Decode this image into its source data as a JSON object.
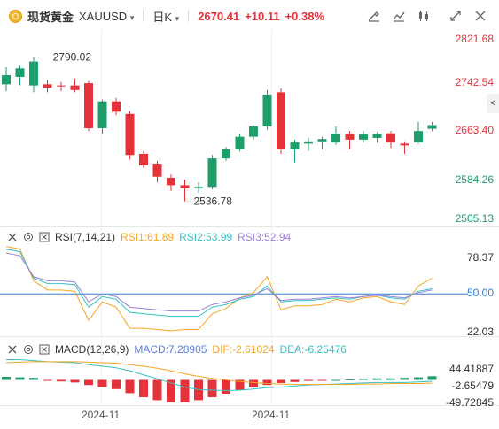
{
  "header": {
    "instrument_name": "现货黄金",
    "symbol": "XAUUSD",
    "symbol_caret": "▾",
    "interval": "日K",
    "interval_caret": "▾",
    "price": "2670.41",
    "change": "+10.11",
    "change_pct": "+0.38%",
    "icons": [
      "draw-icon",
      "indicator-icon",
      "settings-icon",
      "fullscreen-icon",
      "close-icon"
    ]
  },
  "colors": {
    "up": "#e5323a",
    "down": "#1e9e6a",
    "rsi1": "#f5a623",
    "rsi2": "#35c2c2",
    "rsi3": "#9b7fd6",
    "macd_line": "#35c2c2",
    "signal_line": "#f5a623"
  },
  "price_axis": {
    "labels": [
      "2821.68",
      "2742.54",
      "2663.40",
      "2584.26",
      "2505.13"
    ]
  },
  "annotations": {
    "high": "2790.02",
    "low": "2536.78"
  },
  "side_tab": "<",
  "rsi": {
    "title": "RSI(7,14,21)",
    "rsi1": "RSI1:61.89",
    "rsi2": "RSI2:53.99",
    "rsi3": "RSI3:52.94",
    "axis": [
      "78.37",
      "50.00",
      "22.03"
    ]
  },
  "macd": {
    "title": "MACD(12,26,9)",
    "macd": "MACD:7.28905",
    "dif": "DIF:-2.61024",
    "dea": "DEA:-6.25476",
    "axis": [
      "44.41887",
      "-2.65479",
      "-49.72845"
    ]
  },
  "x_axis": {
    "labels": [
      "2024-11",
      "2024-11"
    ]
  },
  "chart_data": {
    "type": "candlestick",
    "price_range": [
      2505.13,
      2821.68
    ],
    "candles": [
      {
        "o": 2742,
        "h": 2772,
        "l": 2730,
        "c": 2758
      },
      {
        "o": 2755,
        "h": 2775,
        "l": 2740,
        "c": 2770
      },
      {
        "o": 2740,
        "h": 2790.02,
        "l": 2728,
        "c": 2782
      },
      {
        "o": 2742,
        "h": 2750,
        "l": 2728,
        "c": 2736
      },
      {
        "o": 2740,
        "h": 2746,
        "l": 2730,
        "c": 2739
      },
      {
        "o": 2740,
        "h": 2752,
        "l": 2728,
        "c": 2732
      },
      {
        "o": 2744,
        "h": 2748,
        "l": 2660,
        "c": 2665
      },
      {
        "o": 2665,
        "h": 2715,
        "l": 2655,
        "c": 2712
      },
      {
        "o": 2712,
        "h": 2718,
        "l": 2688,
        "c": 2694
      },
      {
        "o": 2690,
        "h": 2695,
        "l": 2610,
        "c": 2618
      },
      {
        "o": 2620,
        "h": 2625,
        "l": 2595,
        "c": 2600
      },
      {
        "o": 2603,
        "h": 2608,
        "l": 2570,
        "c": 2580
      },
      {
        "o": 2578,
        "h": 2584,
        "l": 2555,
        "c": 2565
      },
      {
        "o": 2565,
        "h": 2575,
        "l": 2536.78,
        "c": 2560
      },
      {
        "o": 2560,
        "h": 2570,
        "l": 2552,
        "c": 2562
      },
      {
        "o": 2562,
        "h": 2618,
        "l": 2558,
        "c": 2612
      },
      {
        "o": 2612,
        "h": 2632,
        "l": 2608,
        "c": 2628
      },
      {
        "o": 2628,
        "h": 2655,
        "l": 2624,
        "c": 2650
      },
      {
        "o": 2650,
        "h": 2670,
        "l": 2645,
        "c": 2668
      },
      {
        "o": 2668,
        "h": 2732,
        "l": 2662,
        "c": 2724
      },
      {
        "o": 2728,
        "h": 2735,
        "l": 2620,
        "c": 2628
      },
      {
        "o": 2628,
        "h": 2645,
        "l": 2605,
        "c": 2640
      },
      {
        "o": 2638,
        "h": 2648,
        "l": 2625,
        "c": 2642
      },
      {
        "o": 2642,
        "h": 2650,
        "l": 2628,
        "c": 2646
      },
      {
        "o": 2640,
        "h": 2668,
        "l": 2636,
        "c": 2655
      },
      {
        "o": 2655,
        "h": 2660,
        "l": 2628,
        "c": 2645
      },
      {
        "o": 2645,
        "h": 2660,
        "l": 2640,
        "c": 2654
      },
      {
        "o": 2648,
        "h": 2658,
        "l": 2640,
        "c": 2655
      },
      {
        "o": 2656,
        "h": 2660,
        "l": 2630,
        "c": 2640
      },
      {
        "o": 2638,
        "h": 2642,
        "l": 2620,
        "c": 2635
      },
      {
        "o": 2640,
        "h": 2676,
        "l": 2638,
        "c": 2660
      },
      {
        "o": 2664,
        "h": 2676,
        "l": 2660,
        "c": 2670.41
      }
    ],
    "rsi_range": [
      22.03,
      78.37
    ],
    "rsi1": [
      86,
      84,
      60,
      53,
      53,
      52,
      30,
      44,
      40,
      24,
      24,
      23,
      22,
      23,
      23,
      35,
      39,
      47,
      51,
      63,
      38,
      41,
      41,
      42,
      46,
      44,
      47,
      48,
      44,
      42,
      56,
      62
    ],
    "rsi2": [
      84,
      82,
      62,
      58,
      58,
      57,
      40,
      48,
      46,
      36,
      35,
      34,
      33,
      33,
      33,
      40,
      42,
      46,
      48,
      56,
      44,
      45,
      45,
      46,
      47,
      46,
      48,
      49,
      47,
      46,
      52,
      54
    ],
    "rsi3": [
      81,
      79,
      63,
      60,
      60,
      59,
      44,
      50,
      48,
      40,
      39,
      38,
      37,
      37,
      37,
      42,
      44,
      47,
      49,
      54,
      45,
      46,
      46,
      47,
      48,
      47,
      48,
      49,
      48,
      47,
      51,
      53
    ],
    "macd_range": [
      -49.72845,
      44.41887
    ],
    "macd_hist": [
      6,
      5,
      4,
      -1,
      -3,
      -5,
      -10,
      -14,
      -18,
      -26,
      -34,
      -40,
      -44,
      -44,
      -40,
      -34,
      -27,
      -20,
      -14,
      -10,
      -6,
      -4,
      -2,
      -1,
      0,
      1,
      2,
      3,
      3,
      4,
      5,
      7.28905
    ],
    "dif": [
      40,
      40,
      38,
      36,
      35,
      34,
      30,
      27,
      24,
      18,
      10,
      2,
      -6,
      -14,
      -19,
      -20,
      -21,
      -20,
      -18,
      -15,
      -14,
      -12,
      -10,
      -9,
      -8,
      -7,
      -6,
      -5,
      -5,
      -5,
      -4,
      -2.61024
    ],
    "dea": [
      34,
      35,
      36,
      36,
      36,
      36,
      35,
      34,
      33,
      30,
      27,
      23,
      18,
      12,
      7,
      3,
      0,
      -3,
      -5,
      -7,
      -8,
      -9,
      -9,
      -9,
      -9,
      -9,
      -8,
      -8,
      -7,
      -7,
      -7,
      -6.25476
    ]
  }
}
